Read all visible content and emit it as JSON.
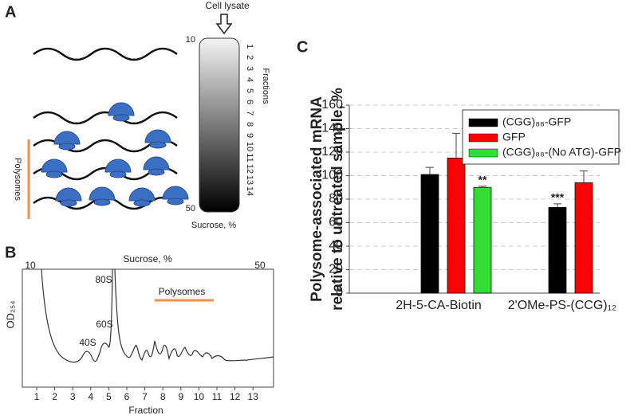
{
  "panel_a": {
    "label": "A",
    "top_label": "Cell lysate",
    "top_value": "10",
    "bottom_value": "50",
    "axis_label": "Sucrose, %",
    "fractions_label": "Fractions",
    "fractions": [
      "1",
      "2",
      "3",
      "4",
      "5",
      "6",
      "7",
      "8",
      "9",
      "10",
      "11",
      "12",
      "13",
      "14"
    ],
    "polysomes_label": "Polysomes"
  },
  "panel_b": {
    "label": "B",
    "top_label": "Sucrose, %",
    "left_value": "10",
    "right_value": "50",
    "y_label": "OD₂₅₄",
    "x_label": "Fraction",
    "xticks": [
      "1",
      "2",
      "3",
      "4",
      "5",
      "6",
      "7",
      "8",
      "9",
      "10",
      "11",
      "12",
      "13"
    ],
    "peaks": [
      "40S",
      "60S",
      "80S"
    ],
    "polysomes_label": "Polysomes"
  },
  "chart_data": {
    "type": "bar",
    "panel_label": "C",
    "y_label": [
      "Polysome-associated mRNA",
      "relative to untreated sample, %"
    ],
    "categories": [
      "2H-5-CA-Biotin",
      "2'OMe-PS-(CCG)₁₂"
    ],
    "series": [
      {
        "name": "(CGG)₈₈-GFP",
        "color": "#000000",
        "values": [
          101,
          73
        ],
        "errors": [
          6,
          3
        ],
        "significance": [
          null,
          "***"
        ]
      },
      {
        "name": "GFP",
        "color": "#ff0000",
        "values": [
          115,
          94
        ],
        "errors": [
          21,
          10
        ],
        "significance": [
          null,
          null
        ]
      },
      {
        "name": "(CGG)₈₈-(No ATG)-GFP",
        "color": "#33dd33",
        "values": [
          90,
          null
        ],
        "errors": [
          1,
          null
        ],
        "significance": [
          "**",
          null
        ]
      }
    ],
    "ylim": [
      0,
      160
    ],
    "yticks": [
      0,
      20,
      40,
      60,
      80,
      100,
      120,
      140,
      160
    ],
    "grid": true
  }
}
